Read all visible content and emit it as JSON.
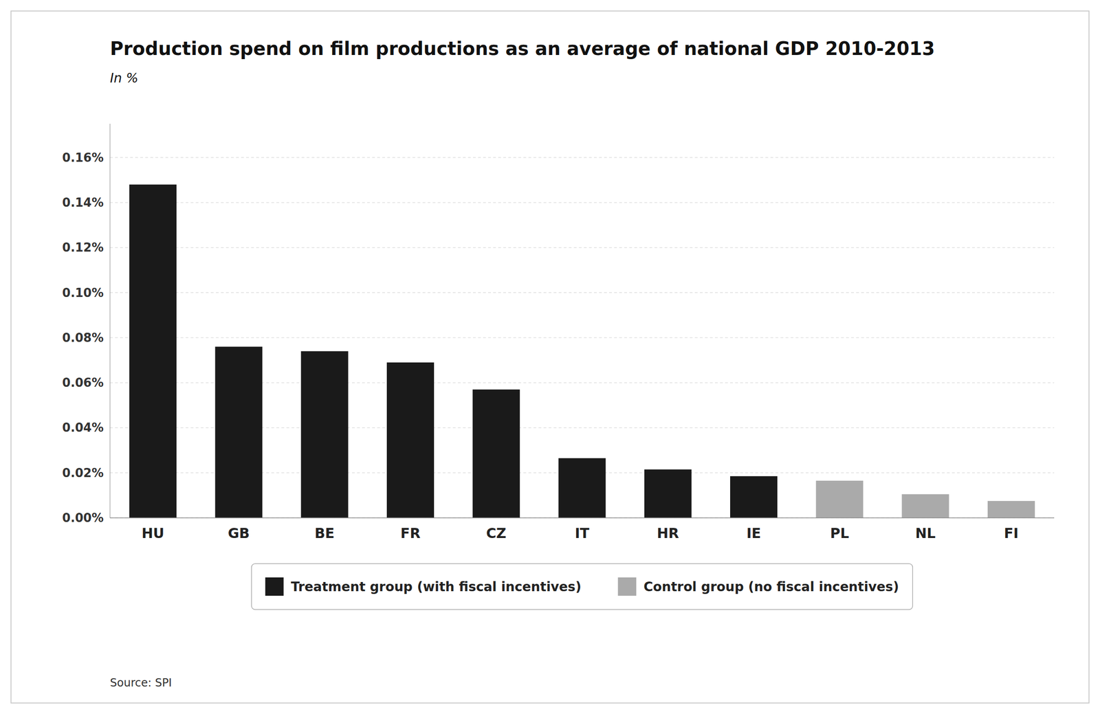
{
  "chart_data": {
    "type": "bar",
    "title": "Production spend on film productions as an average of national GDP  2010-2013",
    "subtitle": "In %",
    "source": "Source: SPI",
    "categories": [
      "HU",
      "GB",
      "BE",
      "FR",
      "CZ",
      "IT",
      "HR",
      "IE",
      "PL",
      "NL",
      "FI"
    ],
    "series": [
      {
        "name": "Treatment group (with fiscal incentives)",
        "color": "#1a1a1a",
        "values": [
          0.00148,
          0.00076,
          0.00074,
          0.00069,
          0.00057,
          0.000265,
          0.000215,
          0.000185,
          null,
          null,
          null
        ]
      },
      {
        "name": "Control group (no fiscal incentives)",
        "color": "#aaaaaa",
        "values": [
          null,
          null,
          null,
          null,
          null,
          null,
          null,
          null,
          0.000165,
          0.000105,
          7.5e-05
        ]
      }
    ],
    "stacked": true,
    "ylim": [
      0,
      0.00175
    ],
    "yticks": [
      {
        "value": 0,
        "label": "0.00%"
      },
      {
        "value": 0.0002,
        "label": "0.02%"
      },
      {
        "value": 0.0004,
        "label": "0.04%"
      },
      {
        "value": 0.0006,
        "label": "0.06%"
      },
      {
        "value": 0.0008,
        "label": "0.08%"
      },
      {
        "value": 0.001,
        "label": "0.10%"
      },
      {
        "value": 0.0012,
        "label": "0.12%"
      },
      {
        "value": 0.0014,
        "label": "0.14%"
      },
      {
        "value": 0.0016,
        "label": "0.16%"
      }
    ],
    "grid": true,
    "legend": "bottom"
  }
}
